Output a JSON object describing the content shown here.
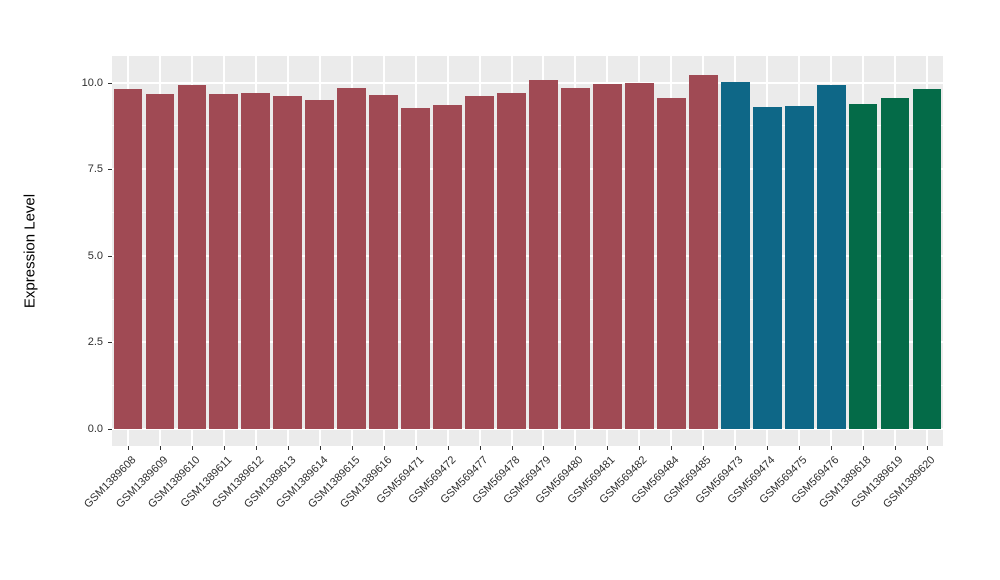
{
  "chart_data": {
    "type": "bar",
    "title": "",
    "xlabel": "",
    "ylabel": "Expression Level",
    "ylim": [
      0,
      10.72
    ],
    "grid": "on",
    "legend_position": "none",
    "panel_bg": "#EBEBEB",
    "grid_color": "#FFFFFF",
    "tick_color": "#333333",
    "axis_text_color": "#303030",
    "yticks": {
      "major": [
        0,
        2.5,
        5.0,
        7.5,
        10.0
      ],
      "labels": [
        "0.0",
        "2.5",
        "5.0",
        "7.5",
        "10.0"
      ],
      "minor": [
        1.25,
        3.75,
        6.25,
        8.75
      ]
    },
    "group_colors": {
      "red": "#A04A54",
      "teal": "#0E6787",
      "green": "#046B48"
    },
    "bars": [
      {
        "label": "GSM1389608",
        "value": 9.8,
        "color": "#A04A54"
      },
      {
        "label": "GSM1389609",
        "value": 9.66,
        "color": "#A04A54"
      },
      {
        "label": "GSM1389610",
        "value": 9.93,
        "color": "#A04A54"
      },
      {
        "label": "GSM1389611",
        "value": 9.67,
        "color": "#A04A54"
      },
      {
        "label": "GSM1389612",
        "value": 9.71,
        "color": "#A04A54"
      },
      {
        "label": "GSM1389613",
        "value": 9.6,
        "color": "#A04A54"
      },
      {
        "label": "GSM1389614",
        "value": 9.5,
        "color": "#A04A54"
      },
      {
        "label": "GSM1389615",
        "value": 9.84,
        "color": "#A04A54"
      },
      {
        "label": "GSM1389616",
        "value": 9.64,
        "color": "#A04A54"
      },
      {
        "label": "GSM569471",
        "value": 9.25,
        "color": "#A04A54"
      },
      {
        "label": "GSM569472",
        "value": 9.34,
        "color": "#A04A54"
      },
      {
        "label": "GSM569477",
        "value": 9.6,
        "color": "#A04A54"
      },
      {
        "label": "GSM569478",
        "value": 9.69,
        "color": "#A04A54"
      },
      {
        "label": "GSM569479",
        "value": 10.08,
        "color": "#A04A54"
      },
      {
        "label": "GSM569480",
        "value": 9.84,
        "color": "#A04A54"
      },
      {
        "label": "GSM569481",
        "value": 9.95,
        "color": "#A04A54"
      },
      {
        "label": "GSM569482",
        "value": 9.98,
        "color": "#A04A54"
      },
      {
        "label": "GSM569484",
        "value": 9.55,
        "color": "#A04A54"
      },
      {
        "label": "GSM569485",
        "value": 10.23,
        "color": "#A04A54"
      },
      {
        "label": "GSM569473",
        "value": 10.02,
        "color": "#0E6787"
      },
      {
        "label": "GSM569474",
        "value": 9.28,
        "color": "#0E6787"
      },
      {
        "label": "GSM569475",
        "value": 9.33,
        "color": "#0E6787"
      },
      {
        "label": "GSM569476",
        "value": 9.92,
        "color": "#0E6787"
      },
      {
        "label": "GSM1389618",
        "value": 9.37,
        "color": "#046B48"
      },
      {
        "label": "GSM1389619",
        "value": 9.56,
        "color": "#046B48"
      },
      {
        "label": "GSM1389620",
        "value": 9.81,
        "color": "#046B48"
      }
    ]
  }
}
